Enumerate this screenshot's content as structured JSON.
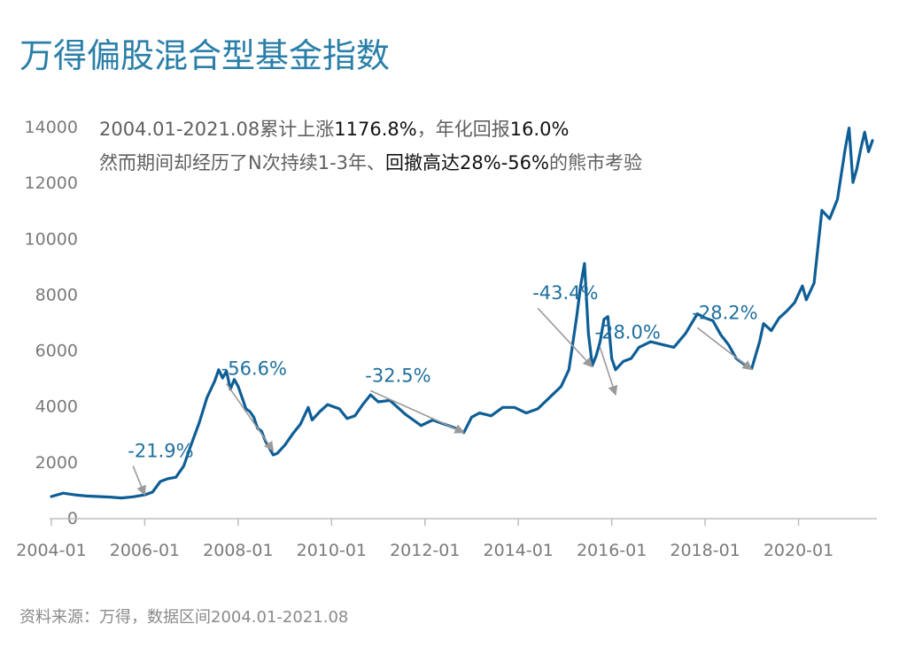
{
  "chart_data": {
    "type": "line",
    "title": "万得偏股混合型基金指数",
    "note": {
      "line1": [
        {
          "t": "2004.01-2021.08累计上涨",
          "hl": false
        },
        {
          "t": "1176.8%",
          "hl": true
        },
        {
          "t": "，年化回报",
          "hl": false
        },
        {
          "t": "16.0%",
          "hl": true
        }
      ],
      "line2": [
        {
          "t": "然而期间却经历了N次持续1-3年、",
          "hl": false
        },
        {
          "t": "回撤高达28%-56%",
          "hl": true
        },
        {
          "t": "的熊市考验",
          "hl": false
        }
      ]
    },
    "source": "资料来源：万得，数据区间2004.01-2021.08",
    "colors": {
      "line": "#0e5e96",
      "title": "#2a7fa8",
      "annotation": "#1f6f9e",
      "arrow": "#9a9a9a"
    },
    "ylim": [
      0,
      14000
    ],
    "yticks": [
      "0",
      "2000",
      "4000",
      "6000",
      "8000",
      "10000",
      "12000",
      "14000"
    ],
    "xlim": [
      "2004-01",
      "2021-08"
    ],
    "xticks": [
      "2004-01",
      "2006-01",
      "2008-01",
      "2010-01",
      "2012-01",
      "2014-01",
      "2016-01",
      "2018-01",
      "2020-01"
    ],
    "series": [
      {
        "values": [
          [
            "2004-01",
            760
          ],
          [
            "2004-04",
            880
          ],
          [
            "2004-07",
            820
          ],
          [
            "2004-10",
            780
          ],
          [
            "2005-01",
            760
          ],
          [
            "2005-04",
            740
          ],
          [
            "2005-07",
            710
          ],
          [
            "2005-10",
            750
          ],
          [
            "2006-01",
            820
          ],
          [
            "2006-03",
            920
          ],
          [
            "2006-05",
            1300
          ],
          [
            "2006-07",
            1400
          ],
          [
            "2006-09",
            1450
          ],
          [
            "2006-11",
            1850
          ],
          [
            "2007-01",
            2650
          ],
          [
            "2007-03",
            3400
          ],
          [
            "2007-05",
            4300
          ],
          [
            "2007-07",
            4900
          ],
          [
            "2007-08",
            5300
          ],
          [
            "2007-09",
            5000
          ],
          [
            "2007-10",
            5250
          ],
          [
            "2007-11",
            4600
          ],
          [
            "2007-12",
            4950
          ],
          [
            "2008-01",
            4700
          ],
          [
            "2008-02",
            4300
          ],
          [
            "2008-03",
            3900
          ],
          [
            "2008-04",
            3800
          ],
          [
            "2008-05",
            3600
          ],
          [
            "2008-06",
            3200
          ],
          [
            "2008-07",
            3100
          ],
          [
            "2008-08",
            2750
          ],
          [
            "2008-09",
            2500
          ],
          [
            "2008-10",
            2250
          ],
          [
            "2008-11",
            2300
          ],
          [
            "2009-01",
            2600
          ],
          [
            "2009-03",
            3000
          ],
          [
            "2009-05",
            3350
          ],
          [
            "2009-07",
            3950
          ],
          [
            "2009-08",
            3500
          ],
          [
            "2009-10",
            3800
          ],
          [
            "2009-12",
            4050
          ],
          [
            "2010-03",
            3900
          ],
          [
            "2010-05",
            3550
          ],
          [
            "2010-07",
            3650
          ],
          [
            "2010-09",
            4050
          ],
          [
            "2010-11",
            4400
          ],
          [
            "2011-01",
            4150
          ],
          [
            "2011-04",
            4200
          ],
          [
            "2011-06",
            3950
          ],
          [
            "2011-08",
            3700
          ],
          [
            "2011-10",
            3500
          ],
          [
            "2011-12",
            3300
          ],
          [
            "2012-03",
            3500
          ],
          [
            "2012-05",
            3400
          ],
          [
            "2012-07",
            3300
          ],
          [
            "2012-09",
            3200
          ],
          [
            "2012-11",
            3050
          ],
          [
            "2013-01",
            3600
          ],
          [
            "2013-03",
            3750
          ],
          [
            "2013-06",
            3650
          ],
          [
            "2013-09",
            3950
          ],
          [
            "2013-12",
            3950
          ],
          [
            "2014-03",
            3750
          ],
          [
            "2014-06",
            3900
          ],
          [
            "2014-09",
            4300
          ],
          [
            "2014-12",
            4700
          ],
          [
            "2015-02",
            5300
          ],
          [
            "2015-04",
            7200
          ],
          [
            "2015-05",
            8300
          ],
          [
            "2015-06",
            9100
          ],
          [
            "2015-07",
            6600
          ],
          [
            "2015-08",
            5450
          ],
          [
            "2015-09",
            5800
          ],
          [
            "2015-10",
            6300
          ],
          [
            "2015-11",
            7100
          ],
          [
            "2015-12",
            7200
          ],
          [
            "2016-01",
            5700
          ],
          [
            "2016-02",
            5300
          ],
          [
            "2016-04",
            5600
          ],
          [
            "2016-06",
            5700
          ],
          [
            "2016-08",
            6100
          ],
          [
            "2016-11",
            6300
          ],
          [
            "2017-02",
            6200
          ],
          [
            "2017-05",
            6100
          ],
          [
            "2017-08",
            6600
          ],
          [
            "2017-11",
            7300
          ],
          [
            "2018-01",
            7150
          ],
          [
            "2018-03",
            7050
          ],
          [
            "2018-05",
            6550
          ],
          [
            "2018-07",
            6200
          ],
          [
            "2018-09",
            5700
          ],
          [
            "2018-11",
            5500
          ],
          [
            "2019-01",
            5350
          ],
          [
            "2019-03",
            6300
          ],
          [
            "2019-04",
            6950
          ],
          [
            "2019-06",
            6700
          ],
          [
            "2019-08",
            7150
          ],
          [
            "2019-10",
            7400
          ],
          [
            "2019-12",
            7700
          ],
          [
            "2020-02",
            8300
          ],
          [
            "2020-03",
            7800
          ],
          [
            "2020-05",
            8400
          ],
          [
            "2020-07",
            11000
          ],
          [
            "2020-09",
            10700
          ],
          [
            "2020-11",
            11400
          ],
          [
            "2021-01",
            13200
          ],
          [
            "2021-02",
            13950
          ],
          [
            "2021-03",
            12000
          ],
          [
            "2021-04",
            12500
          ],
          [
            "2021-05",
            13200
          ],
          [
            "2021-06",
            13800
          ],
          [
            "2021-07",
            13100
          ],
          [
            "2021-08",
            13500
          ]
        ]
      }
    ],
    "annotations": [
      {
        "label": "-21.9%",
        "from": [
          "2005-10",
          1850
        ],
        "to": [
          "2006-01",
          820
        ]
      },
      {
        "label": "-56.6%",
        "from": [
          "2007-10",
          4800
        ],
        "to": [
          "2008-10",
          2400
        ]
      },
      {
        "label": "-32.5%",
        "from": [
          "2010-11",
          4550
        ],
        "to": [
          "2012-11",
          3050
        ]
      },
      {
        "label": "-43.4%",
        "from": [
          "2014-06",
          7500
        ],
        "to": [
          "2015-08",
          5400
        ]
      },
      {
        "label": "-28.0%",
        "from": [
          "2015-10",
          6100
        ],
        "to": [
          "2016-02",
          4400
        ]
      },
      {
        "label": "-28.2%",
        "from": [
          "2017-11",
          6800
        ],
        "to": [
          "2019-01",
          5300
        ]
      }
    ]
  }
}
